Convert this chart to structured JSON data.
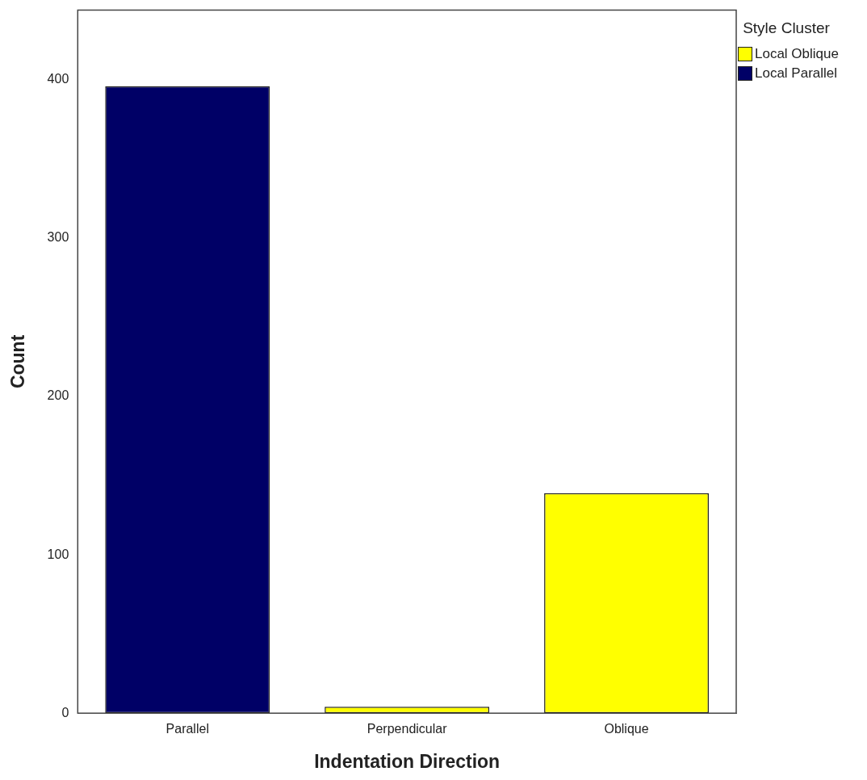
{
  "chart_data": {
    "type": "bar",
    "xlabel": "Indentation Direction",
    "ylabel": "Count",
    "legend_title": "Style Cluster",
    "categories": [
      "Parallel",
      "Perpendicular",
      "Oblique"
    ],
    "stacked": true,
    "series": [
      {
        "name": "Local Oblique",
        "color": "#ffff00",
        "values": [
          0,
          4,
          139
        ]
      },
      {
        "name": "Local Parallel",
        "color": "#000066",
        "values": [
          396,
          0,
          0
        ]
      }
    ],
    "ylim": [
      0,
      444
    ],
    "yticks": [
      0,
      100,
      200,
      300,
      400
    ],
    "grid": false,
    "legend": "right"
  }
}
